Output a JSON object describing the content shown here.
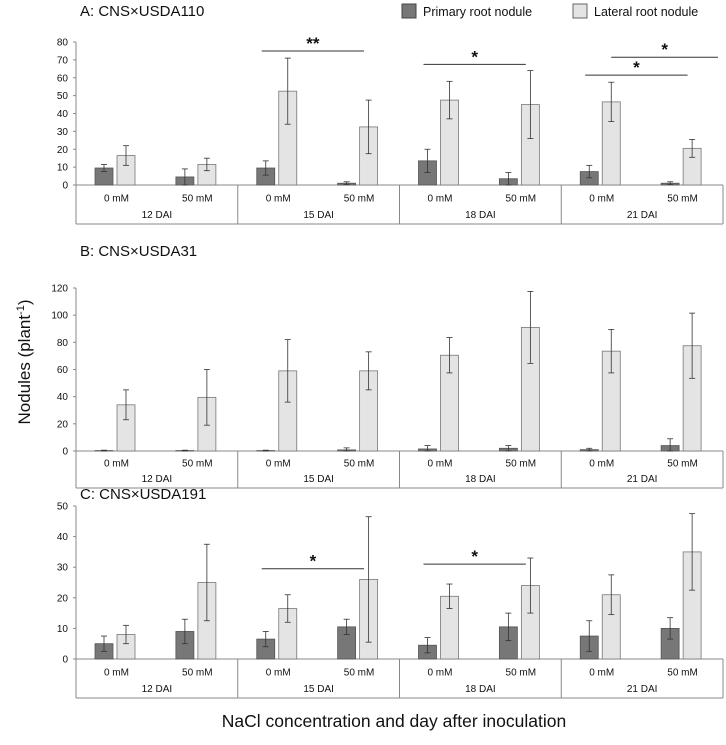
{
  "chart_data": {
    "type": "bar",
    "ylabel_main": "Nodules (plant",
    "ylabel_sup": "-1",
    "ylabel_close": ")",
    "xlabel": "NaCl concentration and day after inoculation",
    "legend": [
      {
        "name": "Primary root nodule",
        "color": "#777777"
      },
      {
        "name": "Lateral root nodule",
        "color": "#e4e4e4"
      }
    ],
    "groups": [
      "12 DAI",
      "15 DAI",
      "18 DAI",
      "21 DAI"
    ],
    "nacl": [
      "0 mM",
      "50 mM"
    ],
    "panels": [
      {
        "title": "A: CNS×USDA110",
        "ylim": [
          0,
          80
        ],
        "yticks": [
          0,
          10,
          20,
          30,
          40,
          50,
          60,
          70,
          80
        ],
        "series": [
          {
            "name": "Primary root nodule",
            "values": [
              9.5,
              4.5,
              9.5,
              1,
              13.5,
              3.5,
              7.5,
              1
            ],
            "errors": [
              2,
              4.5,
              4,
              0.8,
              6.5,
              3.5,
              3.5,
              0.8
            ]
          },
          {
            "name": "Lateral root nodule",
            "values": [
              16.5,
              11.5,
              52.5,
              32.5,
              47.5,
              45,
              46.5,
              20.5
            ],
            "errors": [
              5.5,
              3.5,
              18.5,
              15,
              10.5,
              19,
              11,
              5
            ]
          }
        ],
        "significance": [
          {
            "label": "**",
            "from": 2,
            "to": 3,
            "y": 75,
            "level": 0
          },
          {
            "label": "*",
            "from": 4,
            "to": 5,
            "y": 67.5,
            "level": 0
          },
          {
            "label": "*",
            "from": 6,
            "to": 7,
            "y": 61.5,
            "level": 0
          },
          {
            "label": "*",
            "from": 6,
            "to": 7,
            "y": 71.5,
            "level": 1
          }
        ]
      },
      {
        "title": "B: CNS×USDA31",
        "ylim": [
          0,
          120
        ],
        "yticks": [
          0,
          20,
          40,
          60,
          80,
          100,
          120
        ],
        "series": [
          {
            "name": "Primary root nodule",
            "values": [
              0.3,
              0.3,
              0.3,
              0.8,
              1.5,
              2,
              1,
              4
            ],
            "errors": [
              0.3,
              0.3,
              0.3,
              1.5,
              2.5,
              2,
              1,
              5
            ]
          },
          {
            "name": "Lateral root nodule",
            "values": [
              34,
              39.5,
              59,
              59,
              70.5,
              91,
              73.5,
              77.5
            ],
            "errors": [
              11,
              20.5,
              23,
              14,
              13,
              26.5,
              16,
              24
            ]
          }
        ],
        "significance": []
      },
      {
        "title": "C: CNS×USDA191",
        "ylim": [
          0,
          50
        ],
        "yticks": [
          0,
          10,
          20,
          30,
          40,
          50
        ],
        "series": [
          {
            "name": "Primary root nodule",
            "values": [
              5,
              9,
              6.5,
              10.5,
              4.5,
              10.5,
              7.5,
              10
            ],
            "errors": [
              2.5,
              4,
              2.5,
              2.5,
              2.5,
              4.5,
              5,
              3.5
            ]
          },
          {
            "name": "Lateral root nodule",
            "values": [
              8,
              25,
              16.5,
              26,
              20.5,
              24,
              21,
              35
            ],
            "errors": [
              3,
              12.5,
              4.5,
              20.5,
              4,
              9,
              6.5,
              12.5
            ]
          }
        ],
        "significance": [
          {
            "label": "*",
            "from": 2,
            "to": 3,
            "y": 29.5,
            "level": 0
          },
          {
            "label": "*",
            "from": 4,
            "to": 5,
            "y": 31,
            "level": 0
          }
        ]
      }
    ]
  }
}
